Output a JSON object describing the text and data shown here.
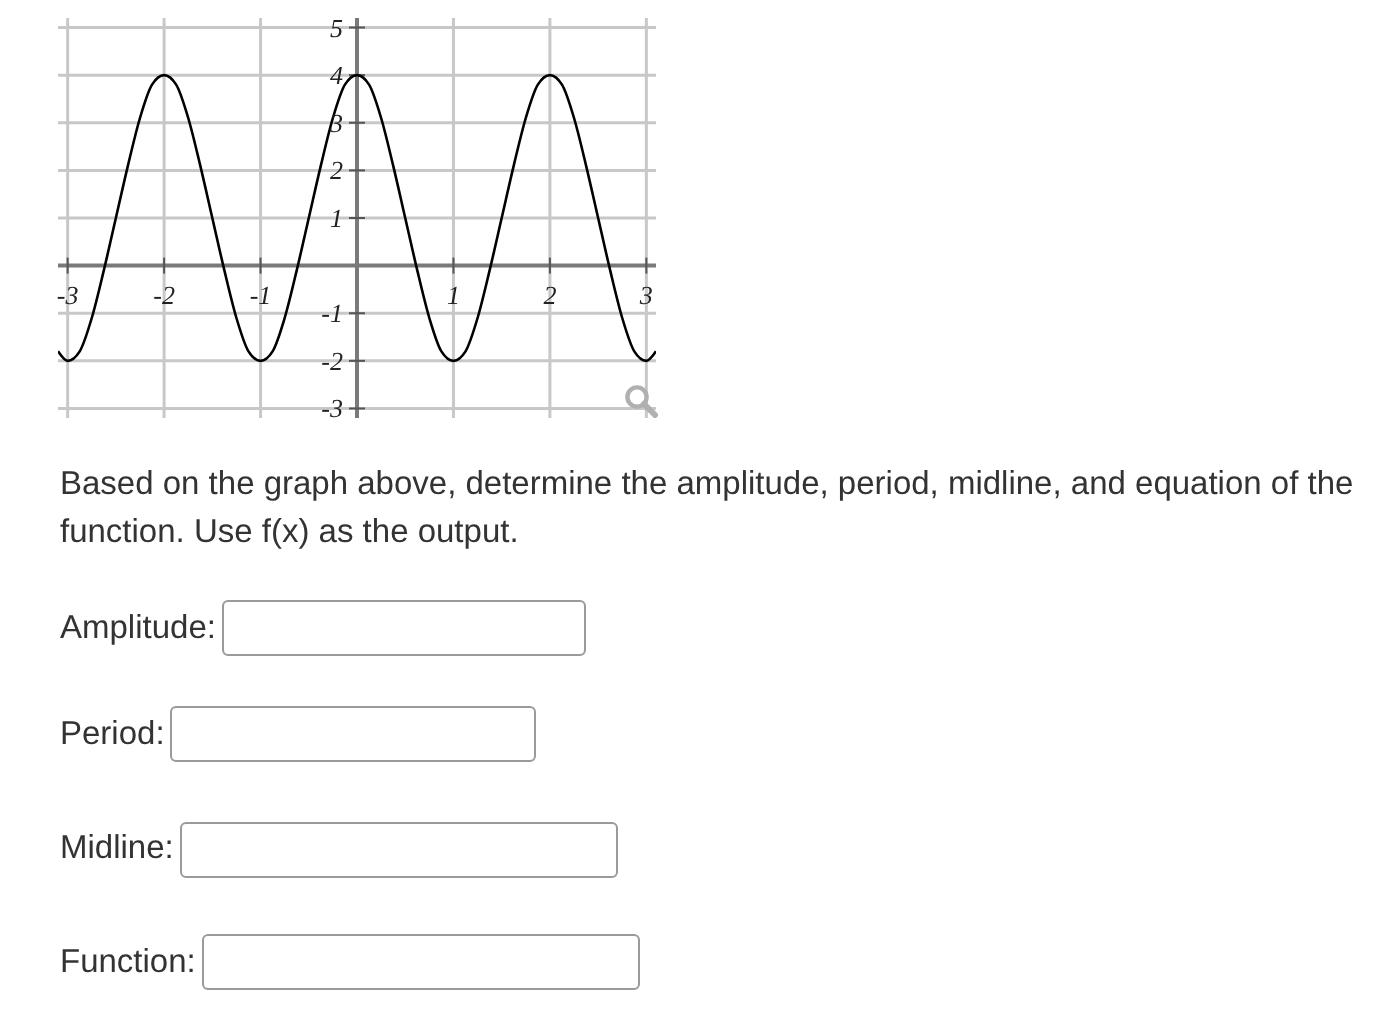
{
  "chart_data": {
    "type": "line",
    "x": [
      -3.1,
      -3,
      -2.875,
      -2.75,
      -2.625,
      -2.5,
      -2.375,
      -2.25,
      -2.125,
      -2,
      -1.875,
      -1.75,
      -1.625,
      -1.5,
      -1.375,
      -1.25,
      -1.125,
      -1,
      -0.875,
      -0.75,
      -0.625,
      -0.5,
      -0.375,
      -0.25,
      -0.125,
      0,
      0.125,
      0.25,
      0.375,
      0.5,
      0.625,
      0.75,
      0.875,
      1,
      1.125,
      1.25,
      1.375,
      1.5,
      1.625,
      1.75,
      1.875,
      2,
      2.125,
      2.25,
      2.375,
      2.5,
      2.625,
      2.75,
      2.875,
      3,
      3.1
    ],
    "series": [
      {
        "color": "#000000",
        "values": [
          -1.8,
          -2,
          -1.8,
          -1.1,
          -0.1,
          1,
          2.1,
          3.1,
          3.8,
          4,
          3.8,
          3.1,
          2.1,
          1,
          -0.1,
          -1.1,
          -1.8,
          -2,
          -1.8,
          -1.1,
          -0.1,
          1,
          2.1,
          3.1,
          3.8,
          4,
          3.8,
          3.1,
          2.1,
          1,
          -0.1,
          -1.1,
          -1.8,
          -2,
          -1.8,
          -1.1,
          -0.1,
          1,
          2.1,
          3.1,
          3.8,
          4,
          3.8,
          3.1,
          2.1,
          1,
          -0.1,
          -1.1,
          -1.8,
          -2,
          -1.8
        ]
      }
    ],
    "xlim": [
      -3.1,
      3.1
    ],
    "ylim": [
      -3.2,
      5.2
    ],
    "xticks": [
      -3,
      -2,
      -1,
      1,
      2,
      3
    ],
    "yticks": [
      -3,
      -2,
      -1,
      1,
      2,
      3,
      4,
      5
    ],
    "grid": true,
    "annotations": [
      "Based on the graph above, determine the amplitude, period, midline, and equation of the function. Use f(x) as the output.",
      "Amplitude:",
      "Period:",
      "Midline:",
      "Function:"
    ]
  }
}
